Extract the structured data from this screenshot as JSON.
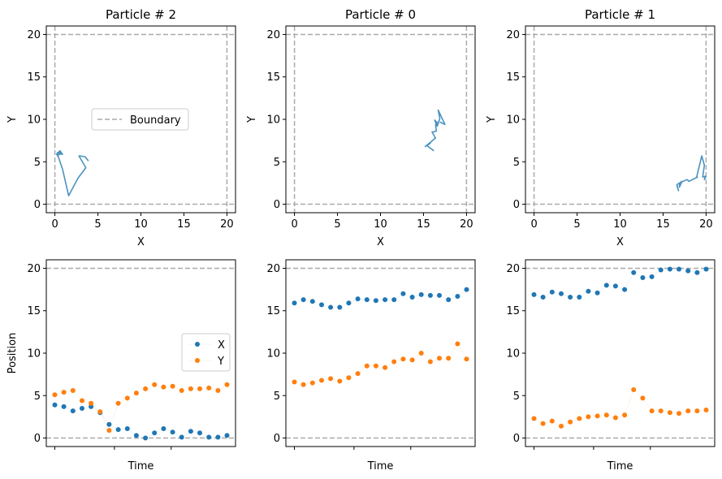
{
  "colors": {
    "path": "#4a93c0",
    "x_series": "#1f77b4",
    "y_series": "#ff7f0e",
    "boundary": "#aaaaaa",
    "legend_border": "#cccccc"
  },
  "legend_top": {
    "entry": "Boundary"
  },
  "legend_bottom": {
    "x": "X",
    "y": "Y"
  },
  "chart_data": [
    {
      "type": "line",
      "title": "Particle # 2",
      "xlabel": "X",
      "ylabel": "Y",
      "xlim": [
        -1,
        21
      ],
      "ylim": [
        -1,
        21
      ],
      "xticks": [
        0,
        5,
        10,
        15,
        20
      ],
      "yticks": [
        0,
        5,
        10,
        15,
        20
      ],
      "boundary": [
        0,
        20
      ],
      "legend": "Boundary",
      "legend_position": "center-right",
      "path": [
        [
          3.9,
          5.1
        ],
        [
          3.5,
          5.6
        ],
        [
          2.8,
          5.7
        ],
        [
          3.6,
          4.3
        ],
        [
          2.7,
          3.1
        ],
        [
          1.6,
          1.0
        ],
        [
          0.9,
          4.1
        ],
        [
          0.6,
          5.0
        ],
        [
          0.4,
          5.6
        ],
        [
          0.2,
          5.9
        ],
        [
          0.6,
          6.3
        ],
        [
          0.8,
          6.0
        ],
        [
          0.3,
          6.1
        ],
        [
          0.4,
          5.7
        ],
        [
          0.2,
          5.9
        ],
        [
          0.9,
          5.9
        ],
        [
          0.6,
          6.1
        ],
        [
          0.5,
          5.9
        ]
      ]
    },
    {
      "type": "line",
      "title": "Particle # 0",
      "xlabel": "X",
      "ylabel": "Y",
      "xlim": [
        -1,
        21
      ],
      "ylim": [
        -1,
        21
      ],
      "xticks": [
        0,
        5,
        10,
        15,
        20
      ],
      "yticks": [
        0,
        5,
        10,
        15,
        20
      ],
      "boundary": [
        0,
        20
      ],
      "path": [
        [
          16.2,
          6.3
        ],
        [
          15.4,
          6.9
        ],
        [
          15.8,
          7.2
        ],
        [
          15.2,
          6.8
        ],
        [
          16.4,
          7.8
        ],
        [
          16.0,
          8.5
        ],
        [
          16.5,
          8.6
        ],
        [
          16.4,
          9.4
        ],
        [
          16.7,
          9.5
        ],
        [
          16.3,
          9.9
        ],
        [
          16.6,
          9.2
        ],
        [
          16.9,
          10.1
        ],
        [
          16.7,
          11.1
        ],
        [
          17.5,
          9.4
        ],
        [
          16.9,
          9.7
        ]
      ]
    },
    {
      "type": "line",
      "title": "Particle # 1",
      "xlabel": "X",
      "ylabel": "Y",
      "xlim": [
        -1,
        21
      ],
      "ylim": [
        -1,
        21
      ],
      "xticks": [
        0,
        5,
        10,
        15,
        20
      ],
      "yticks": [
        0,
        5,
        10,
        15,
        20
      ],
      "boundary": [
        0,
        20
      ],
      "path": [
        [
          20.0,
          3.3
        ],
        [
          19.8,
          2.9
        ],
        [
          19.9,
          3.3
        ],
        [
          19.6,
          3.2
        ],
        [
          19.8,
          4.6
        ],
        [
          19.5,
          5.7
        ],
        [
          18.9,
          3.2
        ],
        [
          19.0,
          3.2
        ],
        [
          18.0,
          2.7
        ],
        [
          17.8,
          2.9
        ],
        [
          16.9,
          2.5
        ],
        [
          16.9,
          2.0
        ],
        [
          17.2,
          2.7
        ],
        [
          16.6,
          2.3
        ],
        [
          16.8,
          1.6
        ],
        [
          16.6,
          2.2
        ]
      ]
    },
    {
      "type": "scatter",
      "title": "",
      "xlabel": "Time",
      "ylabel": "Position",
      "ylim": [
        -1,
        21
      ],
      "yticks": [
        0,
        5,
        10,
        15,
        20
      ],
      "boundary": [
        0,
        20
      ],
      "legend": [
        "X",
        "Y"
      ],
      "legend_position": "center-right",
      "series": [
        {
          "name": "X",
          "values": [
            3.9,
            3.7,
            3.2,
            3.5,
            3.7,
            3.0,
            1.6,
            1.0,
            1.1,
            0.3,
            0.0,
            0.6,
            1.1,
            0.7,
            0.1,
            0.8,
            0.6,
            0.1,
            0.1,
            0.3
          ]
        },
        {
          "name": "Y",
          "values": [
            5.1,
            5.4,
            5.6,
            4.4,
            4.1,
            3.1,
            0.9,
            4.1,
            4.7,
            5.3,
            5.8,
            6.3,
            6.0,
            6.1,
            5.6,
            5.8,
            5.8,
            5.9,
            5.6,
            6.3
          ]
        }
      ]
    },
    {
      "type": "scatter",
      "title": "",
      "xlabel": "Time",
      "ylabel": "",
      "ylim": [
        -1,
        21
      ],
      "yticks": [
        0,
        5,
        10,
        15,
        20
      ],
      "boundary": [
        0,
        20
      ],
      "series": [
        {
          "values": [
            15.9,
            16.3,
            16.1,
            15.7,
            15.4,
            15.4,
            15.9,
            16.4,
            16.3,
            16.2,
            16.3,
            16.3,
            17.0,
            16.6,
            16.9,
            16.8,
            16.8,
            16.3,
            16.7,
            17.5
          ]
        },
        {
          "values": [
            6.6,
            6.3,
            6.5,
            6.8,
            7.0,
            6.7,
            7.1,
            7.6,
            8.5,
            8.5,
            8.3,
            9.0,
            9.3,
            9.2,
            10.0,
            9.0,
            9.4,
            9.4,
            11.1,
            9.3
          ]
        }
      ]
    },
    {
      "type": "scatter",
      "title": "",
      "xlabel": "Time",
      "ylabel": "",
      "ylim": [
        -1,
        21
      ],
      "yticks": [
        0,
        5,
        10,
        15,
        20
      ],
      "boundary": [
        0,
        20
      ],
      "series": [
        {
          "values": [
            16.9,
            16.6,
            17.2,
            17.0,
            16.6,
            16.6,
            17.3,
            17.1,
            18.0,
            17.9,
            17.5,
            19.5,
            18.9,
            19.0,
            19.8,
            19.9,
            19.9,
            19.7,
            19.5,
            19.9
          ]
        },
        {
          "values": [
            2.3,
            1.7,
            2.0,
            1.4,
            1.9,
            2.3,
            2.5,
            2.6,
            2.7,
            2.4,
            2.7,
            5.7,
            4.7,
            3.2,
            3.2,
            3.0,
            2.9,
            3.2,
            3.2,
            3.3
          ]
        }
      ]
    }
  ]
}
